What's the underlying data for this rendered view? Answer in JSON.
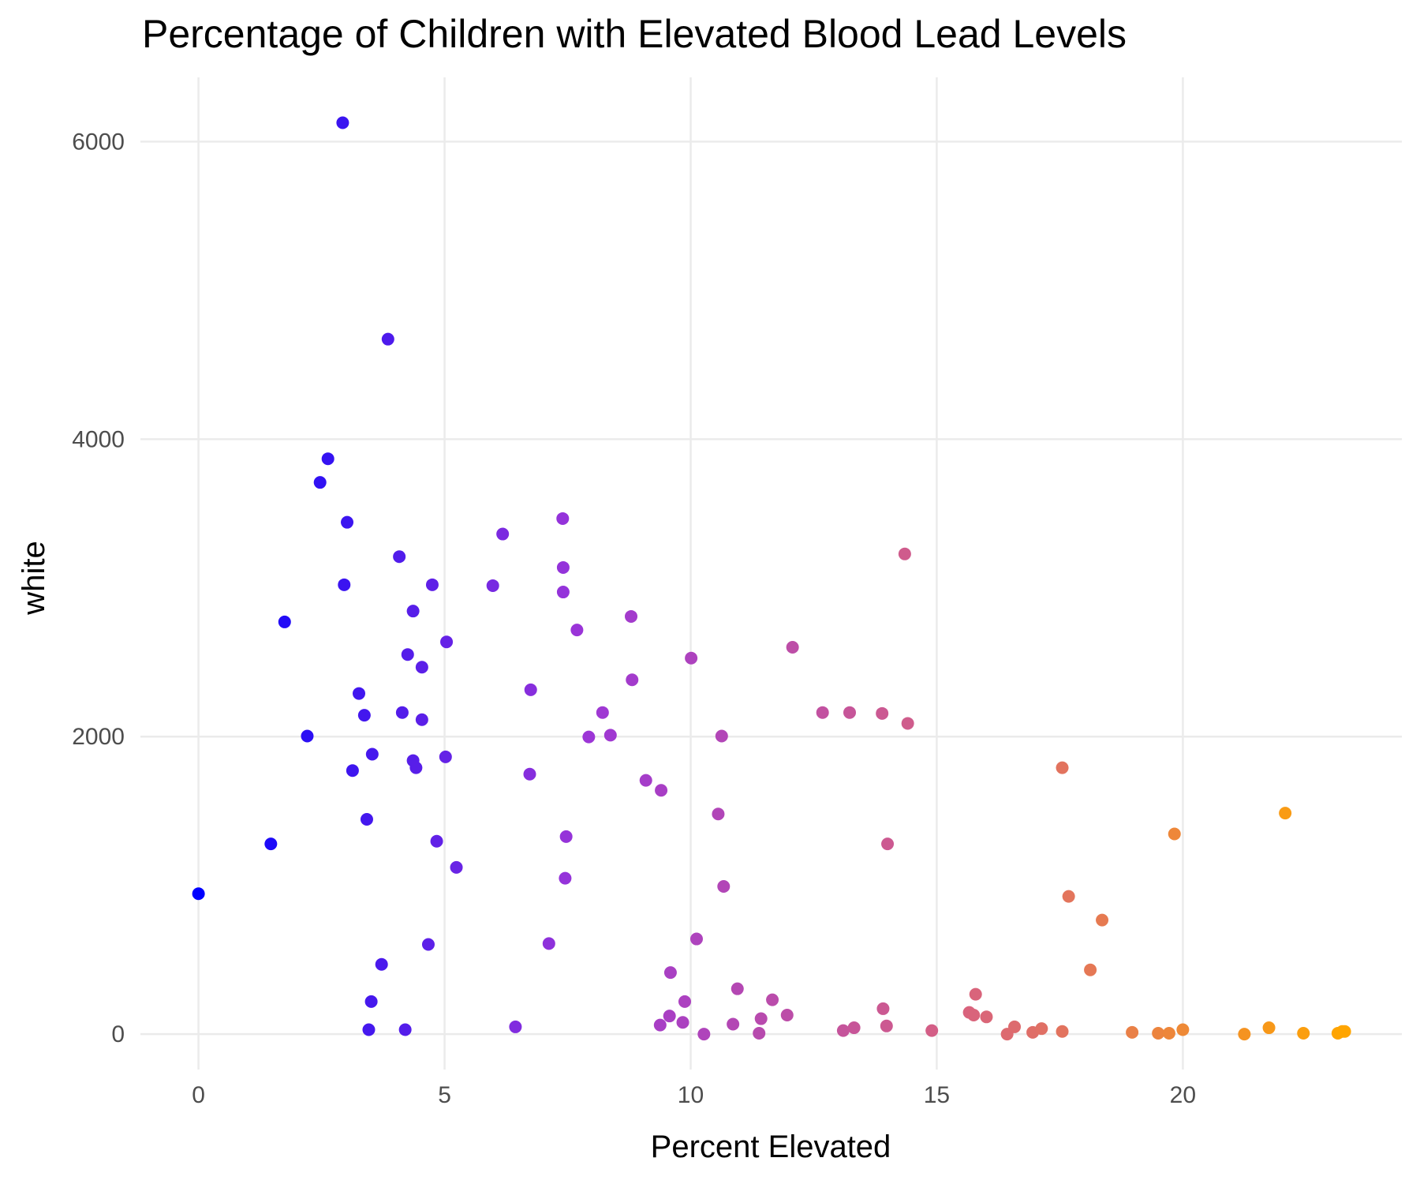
{
  "chart_data": {
    "type": "scatter",
    "title": "Percentage of Children with Elevated Blood Lead Levels",
    "x_label": "Percent Elevated",
    "y_label": "white",
    "xlim": [
      -1.18,
      24.45
    ],
    "ylim": [
      -238,
      6432
    ],
    "xticks": [
      0,
      5,
      10,
      15,
      20
    ],
    "yticks": [
      0,
      2000,
      4000,
      6000
    ],
    "grid": true,
    "color_scale": [
      "#0000ff",
      "#9b35d8",
      "#d8627f",
      "#ffa500"
    ],
    "x": [
      0,
      1.47,
      1.75,
      2.21,
      2.47,
      2.63,
      2.93,
      2.96,
      3.02,
      3.13,
      3.26,
      3.37,
      3.42,
      3.46,
      3.53,
      3.51,
      3.72,
      3.85,
      4.08,
      4.14,
      4.2,
      4.25,
      4.36,
      4.36,
      4.42,
      4.54,
      4.54,
      4.67,
      4.75,
      4.84,
      5.02,
      5.04,
      5.24,
      5.98,
      6.18,
      6.44,
      6.73,
      6.75,
      7.12,
      7.4,
      7.41,
      7.41,
      7.45,
      7.47,
      7.69,
      7.93,
      8.21,
      8.37,
      8.79,
      8.81,
      9.09,
      9.38,
      9.4,
      9.57,
      9.59,
      9.84,
      9.88,
      10.01,
      10.12,
      10.27,
      10.56,
      10.63,
      10.67,
      10.86,
      10.95,
      11.39,
      11.43,
      11.66,
      11.96,
      12.07,
      12.68,
      13.1,
      13.23,
      13.32,
      13.89,
      13.91,
      13.98,
      14.0,
      14.35,
      14.41,
      14.9,
      15.66,
      15.75,
      15.79,
      16.01,
      16.43,
      16.58,
      16.95,
      17.13,
      17.55,
      17.55,
      17.68,
      18.12,
      18.36,
      18.97,
      19.5,
      19.72,
      19.83,
      20.0,
      21.25,
      21.75,
      22.08,
      22.45,
      23.15,
      23.24,
      23.29
    ],
    "values": [
      944,
      1279,
      2771,
      2004,
      3709,
      3868,
      6127,
      3021,
      3441,
      1772,
      2290,
      2144,
      1444,
      30,
      1882,
      219,
      469,
      4672,
      3210,
      2162,
      30,
      2552,
      2844,
      1839,
      1791,
      2467,
      2114,
      603,
      3021,
      1297,
      1864,
      2637,
      1121,
      3015,
      3362,
      49,
      1748,
      2315,
      609,
      3466,
      3137,
      2972,
      1048,
      1328,
      2717,
      1998,
      2162,
      2010,
      2808,
      2382,
      1706,
      61,
      1639,
      122,
      414,
      79,
      219,
      2528,
      640,
      0,
      1480,
      2004,
      993,
      67,
      305,
      6,
      104,
      231,
      128,
      2601,
      2162,
      24,
      2162,
      43,
      2156,
      171,
      55,
      1279,
      3228,
      2089,
      24,
      146,
      128,
      268,
      116,
      0,
      49,
      12,
      37,
      18,
      1791,
      926,
      432,
      767,
      12,
      6,
      6,
      1346,
      30,
      0,
      43,
      1486,
      6,
      6,
      18,
      18
    ]
  }
}
